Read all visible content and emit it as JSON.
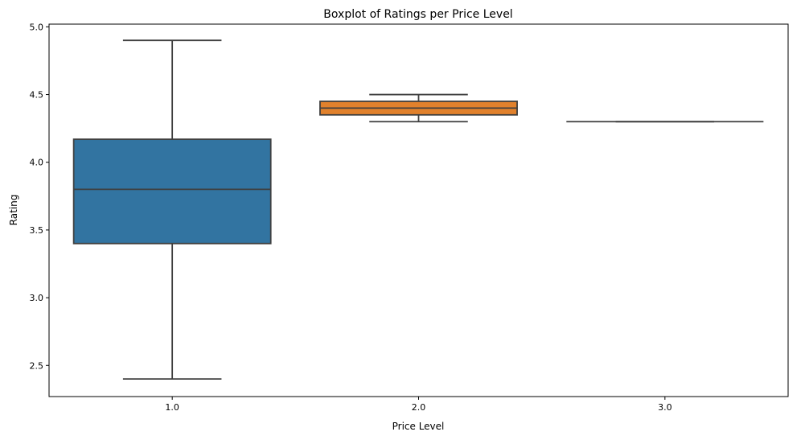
{
  "chart_data": {
    "type": "boxplot",
    "title": "Boxplot of Ratings per Price Level",
    "xlabel": "Price Level",
    "ylabel": "Rating",
    "categories": [
      "1.0",
      "2.0",
      "3.0"
    ],
    "boxes": [
      {
        "category": "1.0",
        "whisker_low": 2.4,
        "q1": 3.4,
        "median": 3.8,
        "q3": 4.17,
        "whisker_high": 4.9,
        "color": "#3274a1"
      },
      {
        "category": "2.0",
        "whisker_low": 4.3,
        "q1": 4.35,
        "median": 4.4,
        "q3": 4.45,
        "whisker_high": 4.5,
        "color": "#e1812c"
      },
      {
        "category": "3.0",
        "whisker_low": 4.3,
        "q1": 4.3,
        "median": 4.3,
        "q3": 4.3,
        "whisker_high": 4.3,
        "color": "#3a923a"
      }
    ],
    "ylim": [
      2.27,
      5.02
    ],
    "yticks": [
      2.5,
      3.0,
      3.5,
      4.0,
      4.5,
      5.0
    ],
    "ytick_labels": [
      "2.5",
      "3.0",
      "3.5",
      "4.0",
      "4.5",
      "5.0"
    ],
    "grid": false,
    "line_color": "#3f3f3f"
  }
}
